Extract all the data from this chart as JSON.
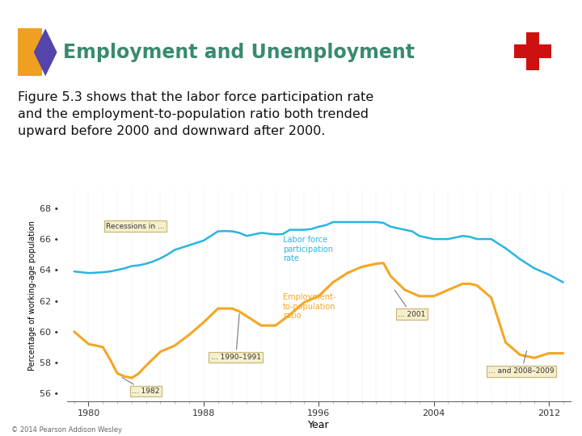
{
  "title": "Employment and Unemployment",
  "subtitle_lines": [
    "Figure 5.3 shows that the labor force participation rate",
    "and the employment-to-population ratio both trended",
    "upward before 2000 and downward after 2000."
  ],
  "ylabel": "Percentage of working-age population",
  "xlabel": "Year",
  "ylim": [
    55.5,
    69.2
  ],
  "yticks": [
    56,
    58,
    60,
    62,
    64,
    66,
    68
  ],
  "xticks": [
    1980,
    1988,
    1996,
    2004,
    2012
  ],
  "title_color": "#3a8a70",
  "title_fontsize": 17,
  "subtitle_fontsize": 11.5,
  "background_color": "#ffffff",
  "header_bg": "#ddeae5",
  "copyright": "© 2014 Pearson Addison Wesley",
  "lfpr_color": "#29b5e0",
  "emp_color": "#f5a623",
  "lfpr_label": "Labor force\nparticipation\nrate",
  "emp_label": "Employment-\nto-population\nratio",
  "recession_label": "Recessions in ...",
  "label_1982": "... 1982",
  "label_1990": "... 1990–1991",
  "label_2001": "... 2001",
  "label_2008": "... and 2008–2009",
  "lfpr_years": [
    1979,
    1979.5,
    1980,
    1980.5,
    1981,
    1981.5,
    1982,
    1982.5,
    1983,
    1983.5,
    1984,
    1984.5,
    1985,
    1985.5,
    1986,
    1986.5,
    1987,
    1987.5,
    1988,
    1988.5,
    1989,
    1989.5,
    1990,
    1990.5,
    1991,
    1991.5,
    1992,
    1992.5,
    1993,
    1993.5,
    1994,
    1994.5,
    1995,
    1995.5,
    1996,
    1996.5,
    1997,
    1997.5,
    1998,
    1998.5,
    1999,
    1999.5,
    2000,
    2000.5,
    2001,
    2001.5,
    2002,
    2002.5,
    2003,
    2003.5,
    2004,
    2004.5,
    2005,
    2005.5,
    2006,
    2006.5,
    2007,
    2007.5,
    2008,
    2008.5,
    2009,
    2009.5,
    2010,
    2010.5,
    2011,
    2011.5,
    2012,
    2012.5,
    2013
  ],
  "lfpr_values": [
    63.9,
    63.85,
    63.8,
    63.82,
    63.85,
    63.9,
    64.0,
    64.1,
    64.25,
    64.3,
    64.4,
    64.55,
    64.75,
    65.0,
    65.3,
    65.45,
    65.6,
    65.75,
    65.9,
    66.2,
    66.5,
    66.52,
    66.5,
    66.4,
    66.2,
    66.3,
    66.4,
    66.35,
    66.3,
    66.32,
    66.6,
    66.6,
    66.6,
    66.65,
    66.8,
    66.9,
    67.1,
    67.1,
    67.1,
    67.1,
    67.1,
    67.1,
    67.1,
    67.05,
    66.8,
    66.7,
    66.6,
    66.5,
    66.2,
    66.1,
    66.0,
    66.0,
    66.0,
    66.1,
    66.2,
    66.15,
    66.0,
    66.0,
    66.0,
    65.7,
    65.4,
    65.05,
    64.7,
    64.4,
    64.1,
    63.9,
    63.7,
    63.45,
    63.2
  ],
  "emp_years": [
    1979,
    1979.5,
    1980,
    1980.5,
    1981,
    1981.5,
    1982,
    1982.5,
    1983,
    1983.5,
    1984,
    1984.5,
    1985,
    1985.5,
    1986,
    1986.5,
    1987,
    1987.5,
    1988,
    1988.5,
    1989,
    1989.5,
    1990,
    1990.5,
    1991,
    1991.5,
    1992,
    1992.5,
    1993,
    1993.5,
    1994,
    1994.5,
    1995,
    1995.5,
    1996,
    1996.5,
    1997,
    1997.5,
    1998,
    1998.5,
    1999,
    1999.5,
    2000,
    2000.5,
    2001,
    2001.5,
    2002,
    2002.5,
    2003,
    2003.5,
    2004,
    2004.5,
    2005,
    2005.5,
    2006,
    2006.5,
    2007,
    2007.5,
    2008,
    2008.5,
    2009,
    2009.5,
    2010,
    2010.5,
    2011,
    2011.5,
    2012,
    2012.5,
    2013
  ],
  "emp_values": [
    60.0,
    59.6,
    59.2,
    59.1,
    59.0,
    58.2,
    57.3,
    57.1,
    57.0,
    57.3,
    57.8,
    58.25,
    58.7,
    58.9,
    59.1,
    59.45,
    59.8,
    60.2,
    60.6,
    61.05,
    61.5,
    61.5,
    61.5,
    61.3,
    61.0,
    60.7,
    60.4,
    60.4,
    60.4,
    60.75,
    61.1,
    61.5,
    61.9,
    62.1,
    62.3,
    62.75,
    63.2,
    63.5,
    63.8,
    64.0,
    64.2,
    64.3,
    64.4,
    64.45,
    63.6,
    63.15,
    62.7,
    62.5,
    62.3,
    62.3,
    62.3,
    62.5,
    62.7,
    62.9,
    63.1,
    63.1,
    63.0,
    62.6,
    62.2,
    60.75,
    59.3,
    58.9,
    58.5,
    58.4,
    58.3,
    58.45,
    58.6,
    58.6,
    58.6
  ]
}
